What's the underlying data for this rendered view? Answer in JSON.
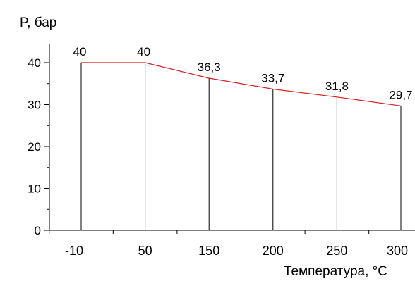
{
  "chart_data": {
    "type": "line",
    "categories": [
      "-10",
      "50",
      "150",
      "200",
      "250",
      "300"
    ],
    "values": [
      40,
      40,
      36.3,
      33.7,
      31.8,
      29.7
    ],
    "data_labels": [
      "40",
      "40",
      "36,3",
      "33,7",
      "31,8",
      "29,7"
    ],
    "ylabel": "P, бар",
    "xlabel": "Температура, °С",
    "yticks": [
      "0",
      "10",
      "20",
      "30",
      "40"
    ],
    "ylim": [
      0,
      40
    ],
    "grid": false,
    "colors": {
      "series": "#d42020",
      "axes": "#000000"
    }
  }
}
